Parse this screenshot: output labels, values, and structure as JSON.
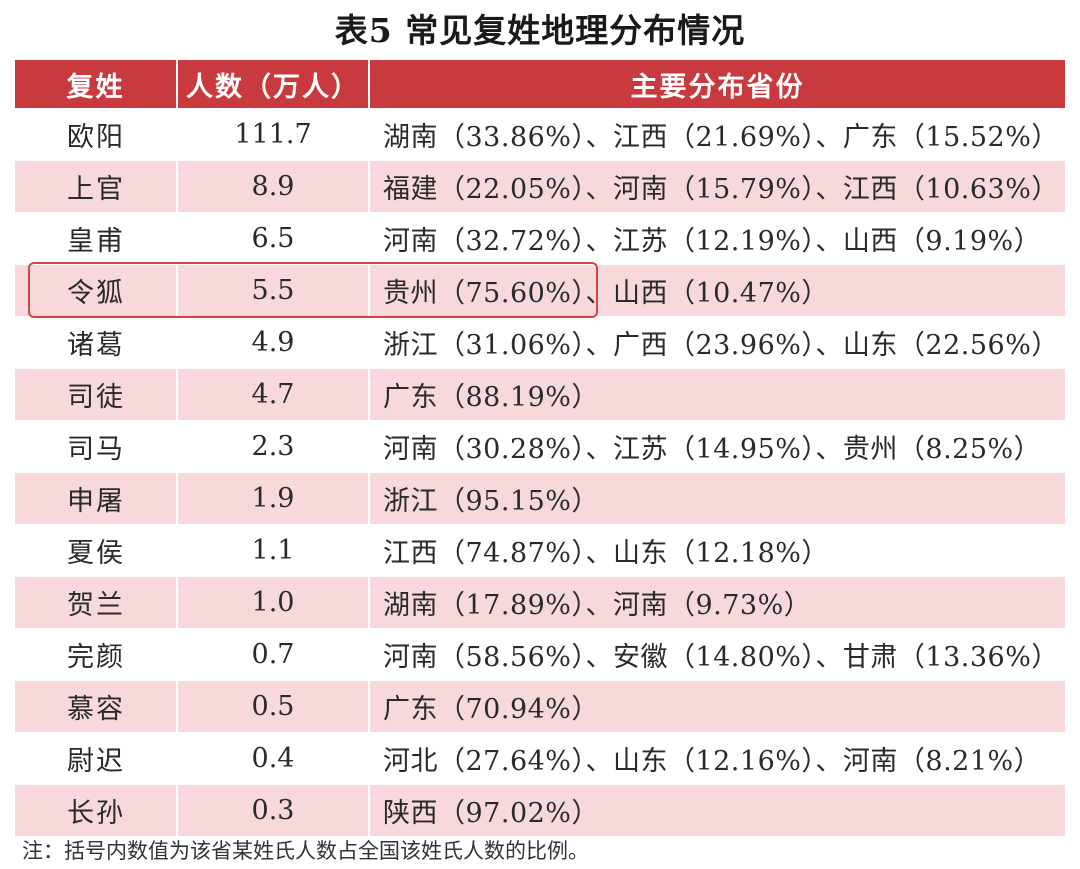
{
  "title": "表5  常见复姓地理分布情况",
  "table": {
    "headers": [
      "复姓",
      "人数（万人）",
      "主要分布省份"
    ],
    "rows": [
      {
        "surname": "欧阳",
        "population": "111.7",
        "provinces": "湖南（33.86%）、江西（21.69%）、广东（15.52%）"
      },
      {
        "surname": "上官",
        "population": "8.9",
        "provinces": "福建（22.05%）、河南（15.79%）、江西（10.63%）"
      },
      {
        "surname": "皇甫",
        "population": "6.5",
        "provinces": "河南（32.72%）、江苏（12.19%）、山西（9.19%）"
      },
      {
        "surname": "令狐",
        "population": "5.5",
        "provinces": "贵州（75.60%）、山西（10.47%）"
      },
      {
        "surname": "诸葛",
        "population": "4.9",
        "provinces": "浙江（31.06%）、广西（23.96%）、山东（22.56%）"
      },
      {
        "surname": "司徒",
        "population": "4.7",
        "provinces": "广东（88.19%）"
      },
      {
        "surname": "司马",
        "population": "2.3",
        "provinces": "河南（30.28%）、江苏（14.95%）、贵州（8.25%）"
      },
      {
        "surname": "申屠",
        "population": "1.9",
        "provinces": "浙江（95.15%）"
      },
      {
        "surname": "夏侯",
        "population": "1.1",
        "provinces": "江西（74.87%）、山东（12.18%）"
      },
      {
        "surname": "贺兰",
        "population": "1.0",
        "provinces": "湖南（17.89%）、河南（9.73%）"
      },
      {
        "surname": "完颜",
        "population": "0.7",
        "provinces": "河南（58.56%）、安徽（14.80%）、甘肃（13.36%）"
      },
      {
        "surname": "慕容",
        "population": "0.5",
        "provinces": "广东（70.94%）"
      },
      {
        "surname": "尉迟",
        "population": "0.4",
        "provinces": "河北（27.64%）、山东（12.16%）、河南（8.21%）"
      },
      {
        "surname": "长孙",
        "population": "0.3",
        "provinces": "陕西（97.02%）"
      }
    ]
  },
  "note": "注：括号内数值为该省某姓氏人数占全国该姓氏人数的比例。",
  "colors": {
    "header_bg": "#c93a3f",
    "stripe": "#f7d9dc",
    "highlight": "#d64545"
  }
}
